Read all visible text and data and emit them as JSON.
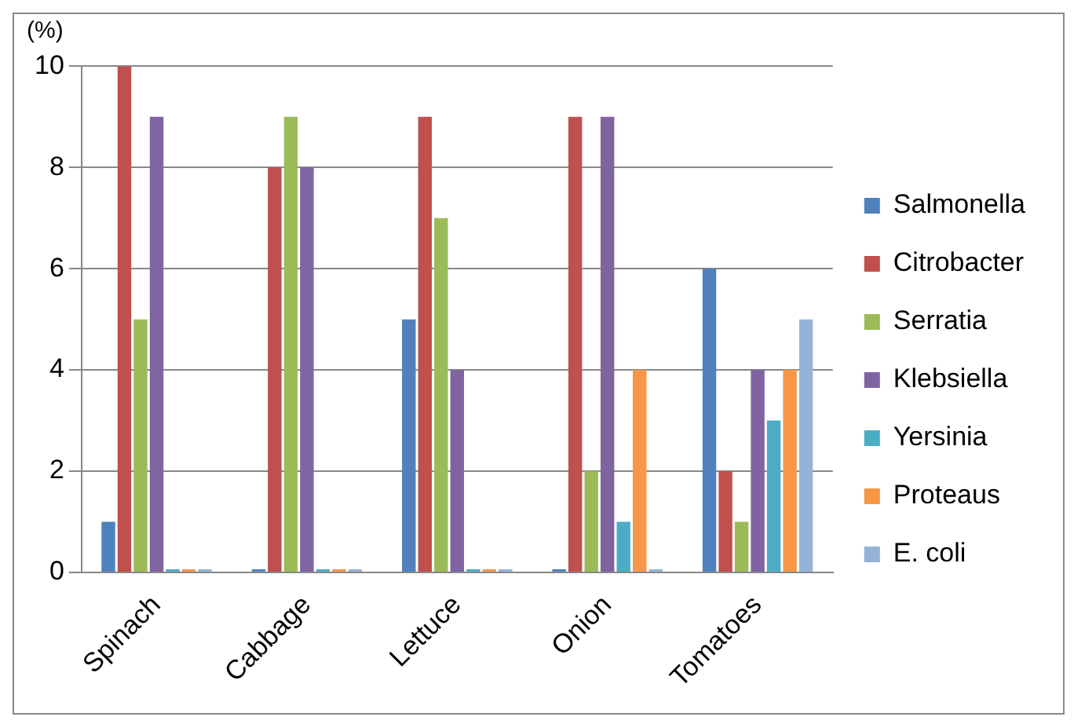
{
  "chart_data": {
    "type": "bar",
    "ylabel": "(%)",
    "categories": [
      "Spinach",
      "Cabbage",
      "Lettuce",
      "Onion",
      "Tomatoes"
    ],
    "series": [
      {
        "name": "Salmonella",
        "color": "#4f81bd",
        "values": [
          1,
          0,
          5,
          0,
          6
        ]
      },
      {
        "name": "Citrobacter",
        "color": "#c0504d",
        "values": [
          10,
          8,
          9,
          9,
          2
        ]
      },
      {
        "name": "Serratia",
        "color": "#9bbb59",
        "values": [
          5,
          9,
          7,
          2,
          1
        ]
      },
      {
        "name": "Klebsiella",
        "color": "#8064a2",
        "values": [
          9,
          8,
          4,
          9,
          4
        ]
      },
      {
        "name": "Yersinia",
        "color": "#4bacc6",
        "values": [
          0,
          0,
          0,
          1,
          3
        ]
      },
      {
        "name": "Proteaus",
        "color": "#f79646",
        "values": [
          0,
          0,
          0,
          4,
          4
        ]
      },
      {
        "name": "E. coli",
        "color": "#95b3d7",
        "values": [
          0,
          0,
          0,
          0,
          5
        ]
      }
    ],
    "ylim": [
      0,
      10
    ],
    "yticks": [
      0,
      2,
      4,
      6,
      8,
      10
    ],
    "grid": "y",
    "legend": "right"
  }
}
